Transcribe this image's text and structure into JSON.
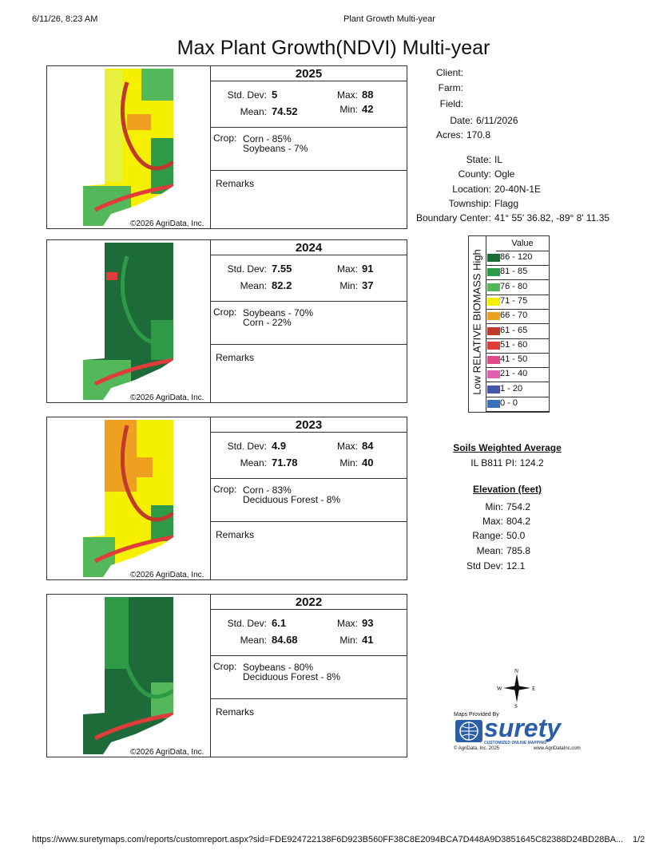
{
  "browser": {
    "datetime": "6/11/26, 8:23 AM",
    "page_title": "Plant Growth Multi-year",
    "url": "https://www.suretymaps.com/reports/customreport.aspx?sid=FDE924722138F6D923B560FF38C8E2094BCA7D448A9D3851645C82388D24BD28BA...",
    "page_number": "1/2"
  },
  "report_title": "Max Plant Growth(NDVI) Multi-year",
  "labels": {
    "std_dev": "Std. Dev:",
    "mean": "Mean:",
    "max": "Max:",
    "min": "Min:",
    "crop": "Crop:",
    "remarks": "Remarks",
    "copyright": "©2026 AgriData, Inc."
  },
  "panels": [
    {
      "year": "2025",
      "std_dev": "5",
      "mean": "74.52",
      "max": "88",
      "min": "42",
      "crop1": "Corn - 85%",
      "crop2": "Soybeans - 7%"
    },
    {
      "year": "2024",
      "std_dev": "7.55",
      "mean": "82.2",
      "max": "91",
      "min": "37",
      "crop1": "Soybeans - 70%",
      "crop2": "Corn - 22%"
    },
    {
      "year": "2023",
      "std_dev": "4.9",
      "mean": "71.78",
      "max": "84",
      "min": "40",
      "crop1": "Corn - 83%",
      "crop2": "Deciduous Forest - 8%"
    },
    {
      "year": "2022",
      "std_dev": "6.1",
      "mean": "84.68",
      "max": "93",
      "min": "41",
      "crop1": "Soybeans - 80%",
      "crop2": "Deciduous Forest - 8%"
    }
  ],
  "field_info": {
    "client_label": "Client:",
    "client": "",
    "farm_label": "Farm:",
    "farm": "",
    "field_label": "Field:",
    "field": "",
    "date_label": "Date:",
    "date": "6/11/2026",
    "acres_label": "Acres:",
    "acres": "170.8",
    "state_label": "State:",
    "state": "IL",
    "county_label": "County:",
    "county": "Ogle",
    "location_label": "Location:",
    "location": "20-40N-1E",
    "township_label": "Township:",
    "township": "Flagg",
    "boundary_label": "Boundary Center:",
    "boundary": "41° 55' 36.82, -89° 8' 11.35"
  },
  "legend": {
    "axis_label": "Low RELATIVE BIOMASS High",
    "header": "Value",
    "rows": [
      {
        "range": "86 - 120",
        "color": "#1e6b3a"
      },
      {
        "range": "81 - 85",
        "color": "#2e9a48"
      },
      {
        "range": "76 - 80",
        "color": "#52b85a"
      },
      {
        "range": "71 - 75",
        "color": "#f4f000"
      },
      {
        "range": "66 - 70",
        "color": "#f0a020"
      },
      {
        "range": "61 - 65",
        "color": "#c0392b"
      },
      {
        "range": "51 - 60",
        "color": "#e03c3c"
      },
      {
        "range": "41 - 50",
        "color": "#e04a8a"
      },
      {
        "range": "21 - 40",
        "color": "#e060b0"
      },
      {
        "range": "1 - 20",
        "color": "#4455aa"
      },
      {
        "range": "0 - 0",
        "color": "#3a70b8"
      }
    ]
  },
  "soils": {
    "title": "Soils Weighted Average",
    "value": "IL B811 PI: 124.2"
  },
  "elevation": {
    "title": "Elevation (feet)",
    "min_label": "Min:",
    "min": "754.2",
    "max_label": "Max:",
    "max": "804.2",
    "range_label": "Range:",
    "range": "50.0",
    "mean_label": "Mean:",
    "mean": "785.8",
    "std_label": "Std Dev:",
    "std": "12.1"
  },
  "compass": {
    "n": "N",
    "s": "S",
    "e": "E",
    "w": "W"
  },
  "brand": {
    "provided": "Maps Provided By",
    "name": "surety",
    "tagline": "CUSTOMIZED ONLINE MAPPING",
    "copyright": "© AgriData, Inc. 2025",
    "site": "www.AgriDataInc.com"
  }
}
